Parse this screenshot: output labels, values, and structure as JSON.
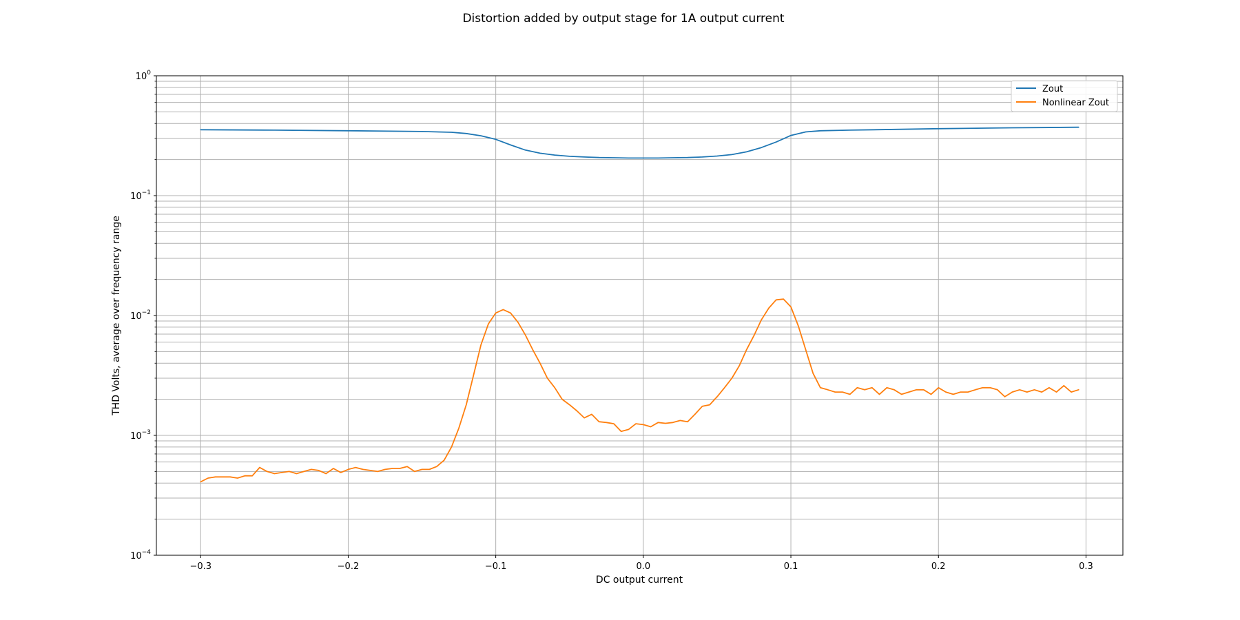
{
  "chart_data": {
    "type": "line",
    "title": "Distortion added by output stage for 1A output current",
    "xlabel": "DC output current",
    "ylabel": "THD Volts, average over frequency range",
    "xlim": [
      -0.33,
      0.325
    ],
    "ylim": [
      0.0001,
      1
    ],
    "y_scale": "log",
    "grid": true,
    "legend_position": "top-right",
    "x_ticks": [
      -0.3,
      -0.2,
      -0.1,
      0.0,
      0.1,
      0.2,
      0.3
    ],
    "x_tick_labels": [
      "−0.3",
      "−0.2",
      "−0.1",
      "0.0",
      "0.1",
      "0.2",
      "0.3"
    ],
    "y_ticks": [
      {
        "value": 0.0001,
        "base": "10",
        "exp": "−4"
      },
      {
        "value": 0.001,
        "base": "10",
        "exp": "−3"
      },
      {
        "value": 0.01,
        "base": "10",
        "exp": "−2"
      },
      {
        "value": 0.1,
        "base": "10",
        "exp": "−1"
      },
      {
        "value": 1,
        "base": "10",
        "exp": "0"
      }
    ],
    "series": [
      {
        "name": "Zout",
        "color": "#1f77b4",
        "x": [
          -0.3,
          -0.25,
          -0.2,
          -0.15,
          -0.13,
          -0.12,
          -0.11,
          -0.1,
          -0.09,
          -0.08,
          -0.07,
          -0.06,
          -0.05,
          -0.04,
          -0.03,
          -0.02,
          -0.01,
          0.0,
          0.01,
          0.02,
          0.03,
          0.04,
          0.05,
          0.06,
          0.07,
          0.08,
          0.09,
          0.1,
          0.11,
          0.12,
          0.14,
          0.2,
          0.25,
          0.295
        ],
        "y": [
          0.355,
          0.352,
          0.348,
          0.343,
          0.338,
          0.33,
          0.316,
          0.295,
          0.265,
          0.24,
          0.226,
          0.218,
          0.213,
          0.21,
          0.208,
          0.207,
          0.206,
          0.206,
          0.206,
          0.207,
          0.208,
          0.21,
          0.214,
          0.22,
          0.232,
          0.252,
          0.28,
          0.318,
          0.34,
          0.348,
          0.352,
          0.362,
          0.368,
          0.372
        ]
      },
      {
        "name": "Nonlinear Zout",
        "color": "#ff7f0e",
        "x": [
          -0.3,
          -0.295,
          -0.29,
          -0.285,
          -0.28,
          -0.275,
          -0.27,
          -0.265,
          -0.26,
          -0.255,
          -0.25,
          -0.245,
          -0.24,
          -0.235,
          -0.23,
          -0.225,
          -0.22,
          -0.215,
          -0.21,
          -0.205,
          -0.2,
          -0.195,
          -0.19,
          -0.185,
          -0.18,
          -0.175,
          -0.17,
          -0.165,
          -0.16,
          -0.155,
          -0.15,
          -0.145,
          -0.14,
          -0.135,
          -0.13,
          -0.125,
          -0.12,
          -0.115,
          -0.11,
          -0.105,
          -0.1,
          -0.095,
          -0.09,
          -0.085,
          -0.08,
          -0.075,
          -0.07,
          -0.065,
          -0.06,
          -0.055,
          -0.05,
          -0.045,
          -0.04,
          -0.035,
          -0.03,
          -0.025,
          -0.02,
          -0.015,
          -0.01,
          -0.005,
          0.0,
          0.005,
          0.01,
          0.015,
          0.02,
          0.025,
          0.03,
          0.035,
          0.04,
          0.045,
          0.05,
          0.055,
          0.06,
          0.065,
          0.07,
          0.075,
          0.08,
          0.085,
          0.09,
          0.095,
          0.1,
          0.105,
          0.11,
          0.115,
          0.12,
          0.125,
          0.13,
          0.135,
          0.14,
          0.145,
          0.15,
          0.155,
          0.16,
          0.165,
          0.17,
          0.175,
          0.18,
          0.185,
          0.19,
          0.195,
          0.2,
          0.205,
          0.21,
          0.215,
          0.22,
          0.225,
          0.23,
          0.235,
          0.24,
          0.245,
          0.25,
          0.255,
          0.26,
          0.265,
          0.27,
          0.275,
          0.28,
          0.285,
          0.29,
          0.295
        ],
        "y": [
          0.00041,
          0.00044,
          0.00045,
          0.00045,
          0.00045,
          0.00044,
          0.00046,
          0.00046,
          0.00054,
          0.0005,
          0.00048,
          0.00049,
          0.0005,
          0.00048,
          0.0005,
          0.00052,
          0.00051,
          0.00048,
          0.00053,
          0.00049,
          0.00052,
          0.00054,
          0.00052,
          0.00051,
          0.0005,
          0.00052,
          0.00053,
          0.00053,
          0.00055,
          0.0005,
          0.00052,
          0.00052,
          0.00055,
          0.00062,
          0.0008,
          0.00115,
          0.0018,
          0.0032,
          0.0057,
          0.0085,
          0.0105,
          0.0112,
          0.0105,
          0.0088,
          0.0069,
          0.0052,
          0.004,
          0.003,
          0.0025,
          0.002,
          0.0018,
          0.0016,
          0.0014,
          0.0015,
          0.0013,
          0.00128,
          0.00125,
          0.00108,
          0.00112,
          0.00125,
          0.00123,
          0.00118,
          0.00128,
          0.00126,
          0.00128,
          0.00133,
          0.0013,
          0.0015,
          0.00175,
          0.0018,
          0.0021,
          0.0025,
          0.003,
          0.0038,
          0.0052,
          0.0068,
          0.0092,
          0.0115,
          0.0135,
          0.0137,
          0.0118,
          0.0082,
          0.0052,
          0.0033,
          0.0025,
          0.0024,
          0.0023,
          0.0023,
          0.0022,
          0.0025,
          0.0024,
          0.0025,
          0.0022,
          0.0025,
          0.0024,
          0.0022,
          0.0023,
          0.0024,
          0.0024,
          0.0022,
          0.0025,
          0.0023,
          0.0022,
          0.0023,
          0.0023,
          0.0024,
          0.0025,
          0.0025,
          0.0024,
          0.0021,
          0.0023,
          0.0024,
          0.0023,
          0.0024,
          0.0023,
          0.0025,
          0.0023,
          0.0026,
          0.0023,
          0.0024
        ]
      }
    ]
  }
}
